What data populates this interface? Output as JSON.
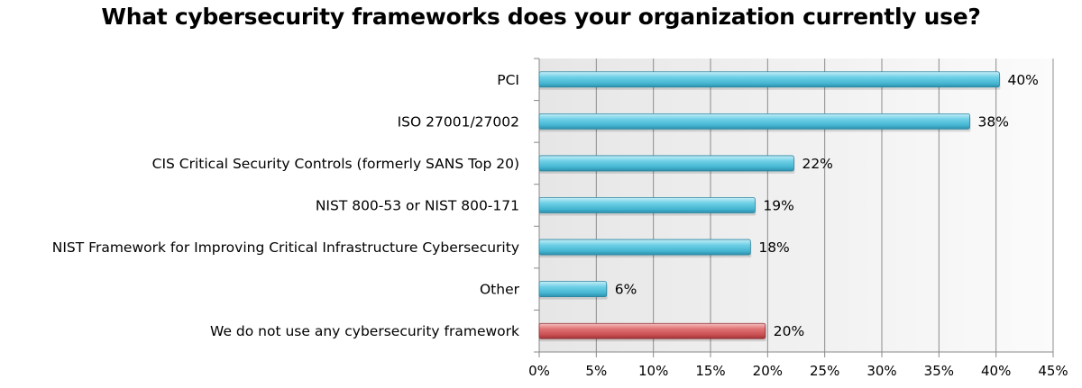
{
  "chart_data": {
    "type": "bar",
    "orientation": "horizontal",
    "title": "What cybersecurity frameworks does your organization currently use?",
    "xlabel": "",
    "ylabel": "",
    "categories": [
      "PCI",
      "ISO 27001/27002",
      "CIS Critical Security Controls (formerly SANS Top 20)",
      "NIST 800-53 or NIST 800-171",
      "NIST Framework for Improving Critical Infrastructure Cybersecurity",
      "Other",
      "We do not use any cybersecurity framework"
    ],
    "values": [
      40.3,
      37.7,
      22.3,
      18.9,
      18.5,
      5.9,
      19.8
    ],
    "data_labels": [
      "40%",
      "38%",
      "22%",
      "19%",
      "18%",
      "6%",
      "20%"
    ],
    "xlim": [
      0,
      45
    ],
    "x_ticks": [
      0,
      5,
      10,
      15,
      20,
      25,
      30,
      35,
      40,
      45
    ],
    "x_tick_labels": [
      "0%",
      "5%",
      "10%",
      "15%",
      "20%",
      "25%",
      "30%",
      "35%",
      "40%",
      "45%"
    ],
    "grid": true,
    "legend": "none",
    "colors": {
      "bar": "#5cc8e0",
      "bar_highlight": "#d86466",
      "grid": "#8c8c8c",
      "plot_bg": "#f2f2f2"
    },
    "highlight_index": 6
  }
}
